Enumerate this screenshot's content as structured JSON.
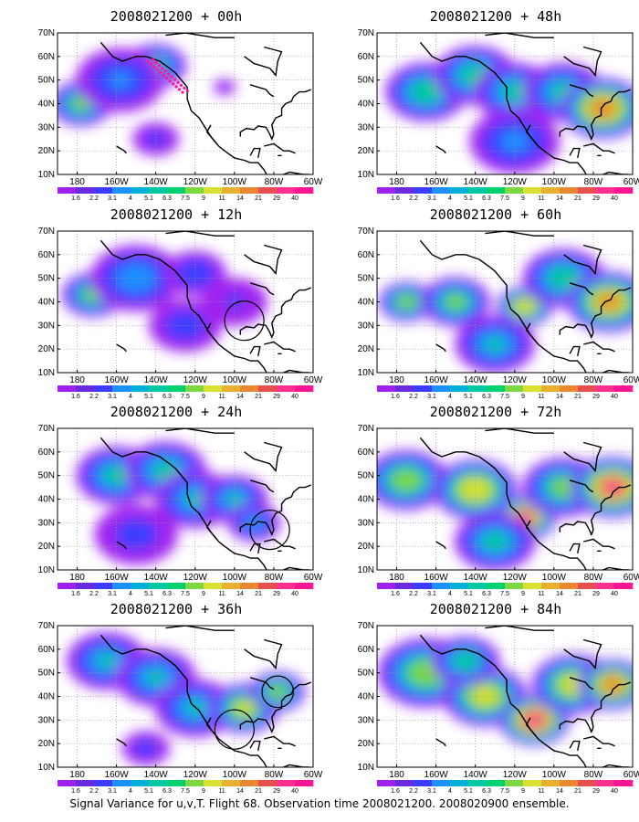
{
  "caption": "Signal Variance for u,v,T. Flight 68. Observation time 2008021200. 2008020900 ensemble.",
  "colorbar": {
    "labels": [
      "1.6",
      "2.2",
      "3.1",
      "4",
      "5.1",
      "6.3",
      "7.5",
      "9",
      "11",
      "14",
      "21",
      "29",
      "40"
    ],
    "colors": [
      "#a020f0",
      "#6a2bdc",
      "#3c3cff",
      "#1e90ff",
      "#00b0d8",
      "#00c8a0",
      "#00d070",
      "#7cd840",
      "#d8e030",
      "#e8b030",
      "#e88830",
      "#e85050",
      "#ff3090",
      "#ff1493"
    ]
  },
  "axes": {
    "x_ticks": [
      "180",
      "160W",
      "140W",
      "120W",
      "100W",
      "80W",
      "60W"
    ],
    "y_ticks": [
      "10N",
      "20N",
      "30N",
      "40N",
      "50N",
      "60N",
      "70N"
    ]
  },
  "chart_data": [
    {
      "type": "heatmap",
      "title": "2008021200 + 00h",
      "lead_hours": 0,
      "blobs": [
        [
          -178,
          40,
          9,
          0.55
        ],
        [
          -140,
          56,
          9,
          0.5
        ],
        [
          -158,
          50,
          14,
          0.28
        ],
        [
          -140,
          25,
          8,
          0.18
        ],
        [
          -105,
          47,
          4,
          0.15
        ]
      ],
      "circles": [],
      "dots": true
    },
    {
      "type": "heatmap",
      "title": "2008021200 + 12h",
      "lead_hours": 12,
      "blobs": [
        [
          -172,
          43,
          9,
          0.55
        ],
        [
          -150,
          50,
          14,
          0.35
        ],
        [
          -125,
          30,
          12,
          0.22
        ],
        [
          -120,
          52,
          10,
          0.25
        ],
        [
          -100,
          40,
          12,
          0.15
        ]
      ],
      "circles": [
        [
          -95,
          32,
          10
        ]
      ],
      "dots": false
    },
    {
      "type": "heatmap",
      "title": "2008021200 + 24h",
      "lead_hours": 24,
      "blobs": [
        [
          -160,
          50,
          12,
          0.45
        ],
        [
          -135,
          52,
          12,
          0.45
        ],
        [
          -120,
          40,
          12,
          0.4
        ],
        [
          -100,
          40,
          10,
          0.4
        ],
        [
          -90,
          30,
          8,
          0.35
        ],
        [
          -150,
          25,
          14,
          0.2
        ]
      ],
      "circles": [
        [
          -82,
          27,
          10
        ]
      ],
      "dots": false
    },
    {
      "type": "heatmap",
      "title": "2008021200 + 36h",
      "lead_hours": 36,
      "blobs": [
        [
          -165,
          55,
          12,
          0.4
        ],
        [
          -140,
          48,
          12,
          0.4
        ],
        [
          -120,
          35,
          12,
          0.4
        ],
        [
          -95,
          35,
          10,
          0.65
        ],
        [
          -78,
          42,
          8,
          0.6
        ],
        [
          -145,
          18,
          8,
          0.2
        ]
      ],
      "circles": [
        [
          -78,
          42,
          8
        ],
        [
          -100,
          26,
          10
        ]
      ],
      "dots": false
    },
    {
      "type": "heatmap",
      "title": "2008021200 + 48h",
      "lead_hours": 48,
      "blobs": [
        [
          -165,
          45,
          12,
          0.5
        ],
        [
          -140,
          52,
          12,
          0.5
        ],
        [
          -120,
          45,
          12,
          0.45
        ],
        [
          -95,
          45,
          12,
          0.45
        ],
        [
          -75,
          38,
          12,
          0.85
        ],
        [
          -120,
          24,
          14,
          0.3
        ]
      ],
      "circles": [],
      "dots": false
    },
    {
      "type": "heatmap",
      "title": "2008021200 + 60h",
      "lead_hours": 60,
      "blobs": [
        [
          -175,
          40,
          8,
          0.6
        ],
        [
          -150,
          40,
          10,
          0.55
        ],
        [
          -115,
          38,
          8,
          0.75
        ],
        [
          -95,
          50,
          12,
          0.5
        ],
        [
          -72,
          40,
          12,
          0.8
        ],
        [
          -130,
          22,
          12,
          0.4
        ]
      ],
      "circles": [],
      "dots": false
    },
    {
      "type": "heatmap",
      "title": "2008021200 + 72h",
      "lead_hours": 72,
      "blobs": [
        [
          -175,
          48,
          12,
          0.6
        ],
        [
          -140,
          44,
          12,
          0.75
        ],
        [
          -115,
          32,
          9,
          0.9
        ],
        [
          -95,
          45,
          12,
          0.55
        ],
        [
          -70,
          45,
          12,
          0.9
        ],
        [
          -130,
          22,
          12,
          0.45
        ]
      ],
      "circles": [],
      "dots": false
    },
    {
      "type": "heatmap",
      "title": "2008021200 + 84h",
      "lead_hours": 84,
      "blobs": [
        [
          -165,
          50,
          14,
          0.6
        ],
        [
          -135,
          40,
          12,
          0.7
        ],
        [
          -110,
          30,
          10,
          0.95
        ],
        [
          -90,
          45,
          12,
          0.7
        ],
        [
          -70,
          45,
          10,
          0.85
        ],
        [
          -145,
          55,
          10,
          0.5
        ]
      ],
      "circles": [],
      "dots": false
    }
  ]
}
